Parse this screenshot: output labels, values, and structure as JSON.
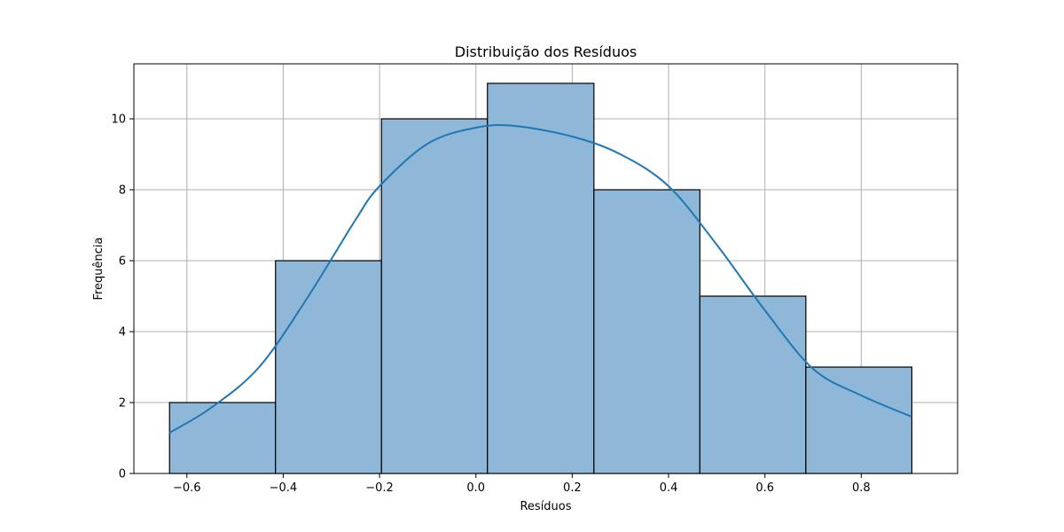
{
  "chart_data": {
    "type": "bar",
    "title": "Distribuição dos Resíduos",
    "xlabel": "Resíduos",
    "ylabel": "Frequência",
    "xlim": [
      -0.71,
      1.0
    ],
    "ylim": [
      0,
      11.55
    ],
    "grid": true,
    "x_ticks": [
      "−0.6",
      "−0.4",
      "−0.2",
      "0.0",
      "0.2",
      "0.4",
      "0.6",
      "0.8"
    ],
    "x_tick_values": [
      -0.6,
      -0.4,
      -0.2,
      0.0,
      0.2,
      0.4,
      0.6,
      0.8
    ],
    "y_ticks": [
      "0",
      "2",
      "4",
      "6",
      "8",
      "10"
    ],
    "y_tick_values": [
      0,
      2,
      4,
      6,
      8,
      10
    ],
    "bins": [
      {
        "x0": -0.636,
        "x1": -0.416,
        "count": 2
      },
      {
        "x0": -0.416,
        "x1": -0.196,
        "count": 6
      },
      {
        "x0": -0.196,
        "x1": 0.024,
        "count": 10
      },
      {
        "x0": 0.024,
        "x1": 0.245,
        "count": 11
      },
      {
        "x0": 0.245,
        "x1": 0.465,
        "count": 8
      },
      {
        "x0": 0.465,
        "x1": 0.685,
        "count": 5
      },
      {
        "x0": 0.685,
        "x1": 0.905,
        "count": 3
      }
    ],
    "kde": {
      "x": [
        -0.636,
        -0.55,
        -0.45,
        -0.35,
        -0.25,
        -0.2,
        -0.1,
        0.0,
        0.08,
        0.2,
        0.3,
        0.4,
        0.5,
        0.6,
        0.7,
        0.8,
        0.905
      ],
      "y": [
        1.15,
        1.85,
        3.0,
        4.95,
        7.15,
        8.1,
        9.3,
        9.75,
        9.8,
        9.5,
        9.0,
        8.1,
        6.45,
        4.6,
        2.95,
        2.2,
        1.6
      ]
    },
    "colors": {
      "bar_fill": "#8fb8d8",
      "bar_edge": "#000000",
      "kde_line": "#1f77b4",
      "grid": "#b0b0b0"
    }
  }
}
